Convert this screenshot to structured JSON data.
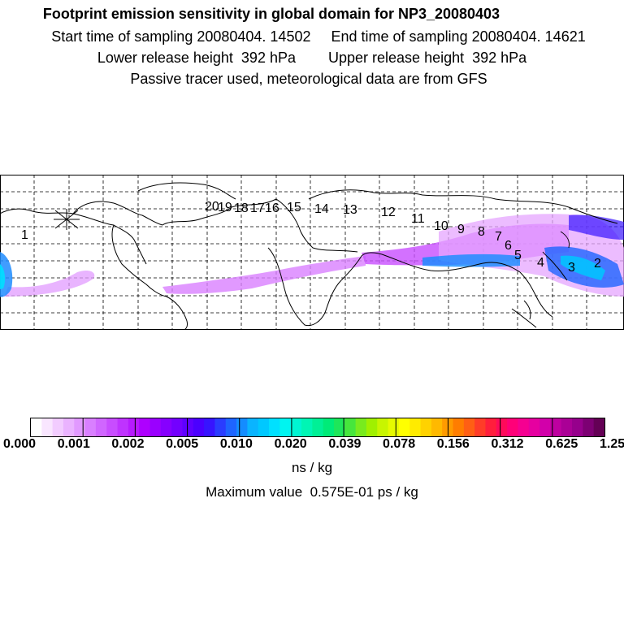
{
  "header": {
    "title": "Footprint emission sensitivity in global domain for NP3_20080403",
    "start_time": "Start time of sampling 20080404. 14502",
    "end_time": "End time of sampling 20080404. 14621",
    "lower_height": "Lower release height  392 hPa",
    "upper_height": "Upper release height  392 hPa",
    "tracer_note": "Passive tracer used, meteorological data are from GFS"
  },
  "map": {
    "track_labels": [
      "1",
      "2",
      "3",
      "4",
      "5",
      "6",
      "7",
      "8",
      "9",
      "10",
      "11",
      "12",
      "13",
      "14",
      "15",
      "16",
      "17",
      "18",
      "19",
      "20"
    ]
  },
  "colorbar": {
    "tick_labels": [
      "0.000",
      "0.001",
      "0.002",
      "0.005",
      "0.010",
      "0.020",
      "0.039",
      "0.078",
      "0.156",
      "0.312",
      "0.625",
      "1.250"
    ],
    "colors": [
      "#ffffff",
      "#f9e6ff",
      "#f2ccff",
      "#eab3ff",
      "#e199ff",
      "#d97fff",
      "#d066ff",
      "#c84dff",
      "#bf33ff",
      "#b71aff",
      "#ae00ff",
      "#9a00ff",
      "#8600ff",
      "#7300ff",
      "#5f00ff",
      "#4b00ff",
      "#3714ff",
      "#2a3cff",
      "#1e64ff",
      "#148cff",
      "#0ab4ff",
      "#00c8ff",
      "#00e0ff",
      "#00f5f0",
      "#00f5d2",
      "#00f5b4",
      "#00f096",
      "#00eb78",
      "#1ee65a",
      "#46e63c",
      "#78eb1e",
      "#a0f000",
      "#c8f500",
      "#e6fa00",
      "#ffff00",
      "#ffeb00",
      "#ffd200",
      "#ffb900",
      "#ff9b00",
      "#ff7d00",
      "#ff5f14",
      "#ff3c28",
      "#ff1e3c",
      "#ff0a5a",
      "#ff0078",
      "#f50091",
      "#e600a0",
      "#d200aa",
      "#be00a0",
      "#aa0096",
      "#96008c",
      "#7d0073",
      "#640055"
    ],
    "units": "ns / kg",
    "max_value_text": "Maximum value  0.575E-01 ps / kg"
  }
}
